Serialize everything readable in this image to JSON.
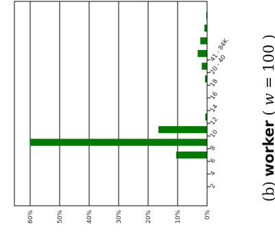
{
  "chart_data": {
    "type": "bar",
    "orientation": "horizontal-rotated",
    "caption": {
      "prefix": "(b) ",
      "bold": "worker",
      "open": " (",
      "var": "w",
      "eq": " = ",
      "num": "100",
      "close": ")"
    },
    "y_tick_labels": [
      "0%",
      "10%",
      "20%",
      "30%",
      "40%",
      "50%",
      "60%"
    ],
    "ylim": [
      0,
      65
    ],
    "grid": "vertical lines at value ticks",
    "bar_color": "#007a00",
    "categories": [
      "2",
      "4",
      "6",
      "8",
      "10",
      "12",
      "14",
      "16",
      "18",
      "20 - 40",
      "41 - 84K"
    ],
    "bins": [
      {
        "x": 3,
        "value": 0
      },
      {
        "x": 4,
        "value": 10.5
      },
      {
        "x": 5,
        "value": 60
      },
      {
        "x": 6,
        "value": 16.5
      },
      {
        "x": 7,
        "value": 0.6
      },
      {
        "x": 8,
        "value": 0
      },
      {
        "x": 9,
        "value": 0
      },
      {
        "x": 10,
        "value": 0.7
      },
      {
        "x": 11,
        "value": 1.8
      },
      {
        "x": 12,
        "value": 3.2
      },
      {
        "x": 13,
        "value": 2.3
      },
      {
        "x": 14,
        "value": 0.9
      },
      {
        "x": 15,
        "value": 0.3
      },
      {
        "x": 20,
        "value": 0.3
      }
    ]
  }
}
